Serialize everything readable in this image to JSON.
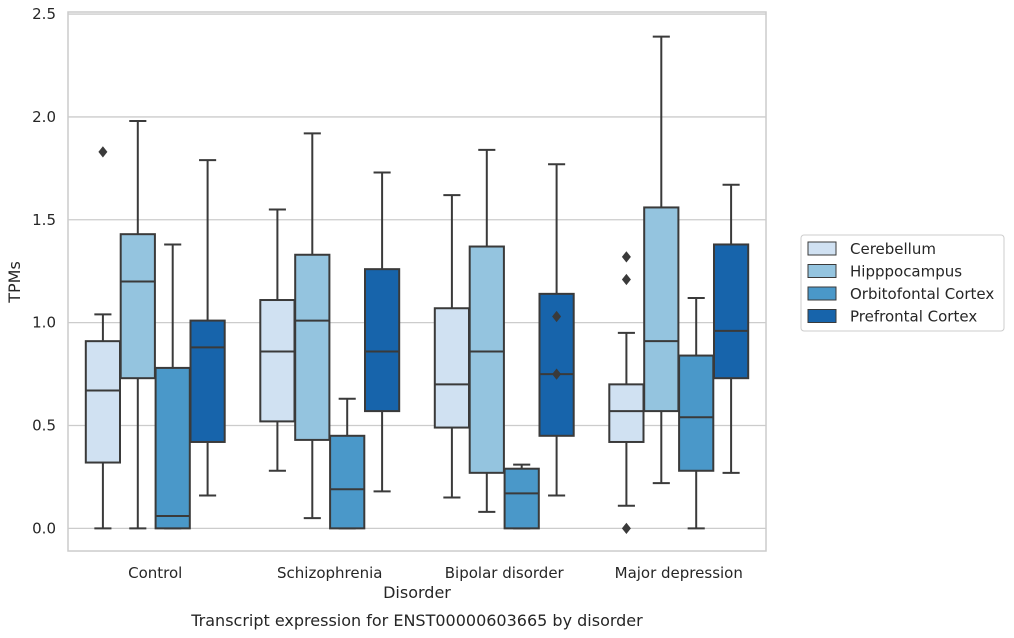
{
  "chart_data": {
    "type": "box",
    "title": "",
    "caption": "Transcript expression for ENST00000603665 by disorder",
    "xlabel": "Disorder",
    "ylabel": "TPMs",
    "ylim": [
      -0.11,
      2.51
    ],
    "yticks": [
      "0.0",
      "0.5",
      "1.0",
      "1.5",
      "2.0",
      "2.5"
    ],
    "ytick_values": [
      0.0,
      0.5,
      1.0,
      1.5,
      2.0,
      2.5
    ],
    "grid": "horizontal",
    "legend_position": "right",
    "categories": [
      "Control",
      "Schizophrenia",
      "Bipolar disorder",
      "Major depression"
    ],
    "series": [
      {
        "name": "Cerebellum",
        "color": "#d0e1f2",
        "boxes": [
          {
            "whisker_low": 0.0,
            "q1": 0.32,
            "median": 0.67,
            "q3": 0.91,
            "whisker_high": 1.04,
            "outliers": [
              1.83
            ]
          },
          {
            "whisker_low": 0.28,
            "q1": 0.52,
            "median": 0.86,
            "q3": 1.11,
            "whisker_high": 1.55,
            "outliers": []
          },
          {
            "whisker_low": 0.15,
            "q1": 0.49,
            "median": 0.7,
            "q3": 1.07,
            "whisker_high": 1.62,
            "outliers": []
          },
          {
            "whisker_low": 0.11,
            "q1": 0.42,
            "median": 0.57,
            "q3": 0.7,
            "whisker_high": 0.95,
            "outliers": [
              0.0,
              1.21,
              1.32
            ]
          }
        ]
      },
      {
        "name": "Hipppocampus",
        "color": "#94c4df",
        "boxes": [
          {
            "whisker_low": 0.0,
            "q1": 0.73,
            "median": 1.2,
            "q3": 1.43,
            "whisker_high": 1.98,
            "outliers": []
          },
          {
            "whisker_low": 0.05,
            "q1": 0.43,
            "median": 1.01,
            "q3": 1.33,
            "whisker_high": 1.92,
            "outliers": []
          },
          {
            "whisker_low": 0.08,
            "q1": 0.27,
            "median": 0.86,
            "q3": 1.37,
            "whisker_high": 1.84,
            "outliers": []
          },
          {
            "whisker_low": 0.22,
            "q1": 0.57,
            "median": 0.91,
            "q3": 1.56,
            "whisker_high": 2.39,
            "outliers": []
          }
        ]
      },
      {
        "name": "Orbitofontal Cortex",
        "color": "#4a98c9",
        "boxes": [
          {
            "whisker_low": 0.0,
            "q1": 0.0,
            "median": 0.06,
            "q3": 0.78,
            "whisker_high": 1.38,
            "outliers": []
          },
          {
            "whisker_low": 0.0,
            "q1": 0.0,
            "median": 0.19,
            "q3": 0.45,
            "whisker_high": 0.63,
            "outliers": []
          },
          {
            "whisker_low": 0.0,
            "q1": 0.0,
            "median": 0.17,
            "q3": 0.29,
            "whisker_high": 0.31,
            "outliers": []
          },
          {
            "whisker_low": 0.0,
            "q1": 0.28,
            "median": 0.54,
            "q3": 0.84,
            "whisker_high": 1.12,
            "outliers": []
          }
        ]
      },
      {
        "name": "Prefrontal Cortex",
        "color": "#1764ab",
        "boxes": [
          {
            "whisker_low": 0.16,
            "q1": 0.42,
            "median": 0.88,
            "q3": 1.01,
            "whisker_high": 1.79,
            "outliers": []
          },
          {
            "whisker_low": 0.18,
            "q1": 0.57,
            "median": 0.86,
            "q3": 1.26,
            "whisker_high": 1.73,
            "outliers": []
          },
          {
            "whisker_low": 0.16,
            "q1": 0.45,
            "median": 0.75,
            "q3": 1.14,
            "whisker_high": 1.77,
            "outliers": [
              0.75,
              1.03
            ]
          },
          {
            "whisker_low": 0.27,
            "q1": 0.73,
            "median": 0.96,
            "q3": 1.38,
            "whisker_high": 1.67,
            "outliers": []
          }
        ]
      }
    ]
  }
}
